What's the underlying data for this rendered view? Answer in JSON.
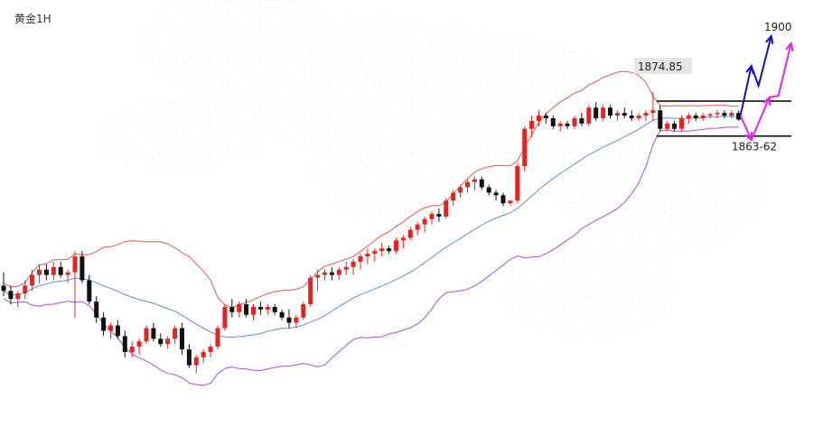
{
  "chart_data": {
    "type": "candlestick",
    "title": "黄金1H",
    "colors": {
      "up": "#e8231f",
      "down": "#111111",
      "upper_band": "#e8584a",
      "middle_band": "#5b8fe3",
      "lower_band": "#a64fe0",
      "level_line": "#000000",
      "scenario_blue": "#1111cc",
      "scenario_magenta": "#ee22ee",
      "price_tag_bg": "#e6e6e6"
    },
    "annotations": {
      "high_label": "1874.85",
      "support_label": "1863-62",
      "target_label": "1900"
    },
    "candles": [
      [
        1802.0,
        1807.0,
        1798.0,
        1800.0
      ],
      [
        1800.0,
        1802.0,
        1795.0,
        1797.0
      ],
      [
        1797.0,
        1800.0,
        1794.0,
        1799.0
      ],
      [
        1799.0,
        1804.0,
        1797.0,
        1802.0
      ],
      [
        1802.0,
        1808.0,
        1800.0,
        1806.0
      ],
      [
        1806.0,
        1810.0,
        1803.0,
        1808.0
      ],
      [
        1808.0,
        1810.0,
        1804.0,
        1806.0
      ],
      [
        1806.0,
        1811.0,
        1804.0,
        1809.0
      ],
      [
        1809.0,
        1811.0,
        1805.0,
        1806.0
      ],
      [
        1806.0,
        1808.0,
        1803.0,
        1807.0
      ],
      [
        1807.0,
        1815.0,
        1790.0,
        1813.0
      ],
      [
        1813.0,
        1815.0,
        1803.0,
        1804.0
      ],
      [
        1804.0,
        1806.0,
        1795.0,
        1796.0
      ],
      [
        1796.0,
        1798.0,
        1788.0,
        1790.0
      ],
      [
        1790.0,
        1792.0,
        1783.0,
        1785.0
      ],
      [
        1785.0,
        1788.0,
        1782.0,
        1787.0
      ],
      [
        1787.0,
        1789.0,
        1782.0,
        1783.0
      ],
      [
        1783.0,
        1785.0,
        1775.0,
        1777.0
      ],
      [
        1777.0,
        1781.0,
        1775.0,
        1779.0
      ],
      [
        1779.0,
        1782.0,
        1776.0,
        1781.0
      ],
      [
        1781.0,
        1787.0,
        1780.0,
        1786.0
      ],
      [
        1786.0,
        1788.0,
        1781.0,
        1782.0
      ],
      [
        1782.0,
        1784.0,
        1779.0,
        1780.0
      ],
      [
        1780.0,
        1783.0,
        1778.0,
        1782.0
      ],
      [
        1782.0,
        1787.0,
        1780.0,
        1786.0
      ],
      [
        1786.0,
        1788.0,
        1776.0,
        1778.0
      ],
      [
        1778.0,
        1780.0,
        1771.0,
        1772.0
      ],
      [
        1772.0,
        1776.0,
        1769.0,
        1775.0
      ],
      [
        1775.0,
        1778.0,
        1773.0,
        1777.0
      ],
      [
        1777.0,
        1780.0,
        1775.0,
        1779.0
      ],
      [
        1779.0,
        1787.0,
        1778.0,
        1786.0
      ],
      [
        1786.0,
        1795.0,
        1785.0,
        1794.0
      ],
      [
        1794.0,
        1797.0,
        1790.0,
        1792.0
      ],
      [
        1792.0,
        1796.0,
        1790.0,
        1795.0
      ],
      [
        1795.0,
        1797.0,
        1790.0,
        1791.0
      ],
      [
        1791.0,
        1795.0,
        1789.0,
        1794.0
      ],
      [
        1794.0,
        1796.0,
        1791.0,
        1793.0
      ],
      [
        1793.0,
        1795.0,
        1791.0,
        1794.0
      ],
      [
        1794.0,
        1795.0,
        1791.0,
        1792.0
      ],
      [
        1792.0,
        1793.0,
        1789.0,
        1790.0
      ],
      [
        1790.0,
        1793.0,
        1786.0,
        1788.0
      ],
      [
        1788.0,
        1791.0,
        1786.0,
        1790.0
      ],
      [
        1790.0,
        1796.0,
        1789.0,
        1795.0
      ],
      [
        1795.0,
        1806.0,
        1794.0,
        1805.0
      ],
      [
        1805.0,
        1808.0,
        1800.0,
        1806.0
      ],
      [
        1806.0,
        1808.0,
        1804.0,
        1807.0
      ],
      [
        1807.0,
        1809.0,
        1804.0,
        1806.0
      ],
      [
        1806.0,
        1809.0,
        1804.0,
        1808.0
      ],
      [
        1808.0,
        1811.0,
        1806.0,
        1809.0
      ],
      [
        1809.0,
        1812.0,
        1806.0,
        1811.0
      ],
      [
        1811.0,
        1814.0,
        1808.0,
        1813.0
      ],
      [
        1813.0,
        1816.0,
        1810.0,
        1814.0
      ],
      [
        1814.0,
        1816.0,
        1811.0,
        1815.0
      ],
      [
        1815.0,
        1818.0,
        1813.0,
        1816.0
      ],
      [
        1816.0,
        1817.0,
        1814.0,
        1815.0
      ],
      [
        1815.0,
        1820.0,
        1814.0,
        1819.0
      ],
      [
        1819.0,
        1821.0,
        1816.0,
        1820.0
      ],
      [
        1820.0,
        1824.0,
        1819.0,
        1823.0
      ],
      [
        1823.0,
        1826.0,
        1821.0,
        1825.0
      ],
      [
        1825.0,
        1828.0,
        1822.0,
        1827.0
      ],
      [
        1827.0,
        1830.0,
        1825.0,
        1829.0
      ],
      [
        1829.0,
        1831.0,
        1826.0,
        1828.0
      ],
      [
        1828.0,
        1835.0,
        1827.0,
        1834.0
      ],
      [
        1834.0,
        1838.0,
        1832.0,
        1837.0
      ],
      [
        1837.0,
        1840.0,
        1835.0,
        1839.0
      ],
      [
        1839.0,
        1842.0,
        1837.0,
        1841.0
      ],
      [
        1841.0,
        1843.0,
        1838.0,
        1842.0
      ],
      [
        1842.0,
        1843.0,
        1838.0,
        1839.0
      ],
      [
        1839.0,
        1840.0,
        1836.0,
        1837.0
      ],
      [
        1837.0,
        1838.0,
        1834.0,
        1836.0
      ],
      [
        1836.0,
        1837.0,
        1832.0,
        1833.0
      ],
      [
        1833.0,
        1834.0,
        1832.0,
        1834.0
      ],
      [
        1834.0,
        1848.0,
        1833.0,
        1847.0
      ],
      [
        1847.0,
        1862.0,
        1845.0,
        1861.0
      ],
      [
        1861.0,
        1866.0,
        1858.0,
        1864.0
      ],
      [
        1864.0,
        1868.0,
        1862.0,
        1866.0
      ],
      [
        1866.0,
        1867.0,
        1863.0,
        1865.0
      ],
      [
        1865.0,
        1866.0,
        1861.0,
        1862.0
      ],
      [
        1862.0,
        1864.0,
        1860.0,
        1863.0
      ],
      [
        1863.0,
        1864.0,
        1861.0,
        1862.0
      ],
      [
        1862.0,
        1866.0,
        1861.0,
        1865.0
      ],
      [
        1865.0,
        1867.0,
        1862.0,
        1863.0
      ],
      [
        1863.0,
        1870.0,
        1862.0,
        1869.0
      ],
      [
        1869.0,
        1871.0,
        1864.0,
        1865.0
      ],
      [
        1865.0,
        1870.0,
        1864.0,
        1869.0
      ],
      [
        1869.0,
        1870.0,
        1865.0,
        1866.0
      ],
      [
        1866.0,
        1868.0,
        1864.0,
        1867.0
      ],
      [
        1867.0,
        1869.0,
        1865.0,
        1866.0
      ],
      [
        1866.0,
        1868.0,
        1864.0,
        1865.0
      ],
      [
        1865.0,
        1867.0,
        1864.0,
        1866.0
      ],
      [
        1866.0,
        1868.0,
        1864.0,
        1867.0
      ],
      [
        1867.0,
        1874.85,
        1864.0,
        1868.0
      ],
      [
        1868.0,
        1870.0,
        1860.0,
        1861.0
      ],
      [
        1861.0,
        1864.0,
        1860.0,
        1863.0
      ],
      [
        1863.0,
        1864.0,
        1860.0,
        1861.0
      ],
      [
        1861.0,
        1866.0,
        1860.0,
        1865.0
      ],
      [
        1865.0,
        1867.0,
        1863.0,
        1866.0
      ],
      [
        1866.0,
        1867.0,
        1864.0,
        1865.0
      ],
      [
        1865.0,
        1867.0,
        1864.0,
        1866.0
      ],
      [
        1866.0,
        1867.0,
        1865.0,
        1866.5
      ],
      [
        1866.5,
        1868.0,
        1865.0,
        1867.0
      ],
      [
        1867.0,
        1868.0,
        1865.0,
        1866.0
      ],
      [
        1866.0,
        1868.0,
        1865.0,
        1867.0
      ],
      [
        1867.0,
        1868.0,
        1864.0,
        1864.5
      ]
    ]
  }
}
